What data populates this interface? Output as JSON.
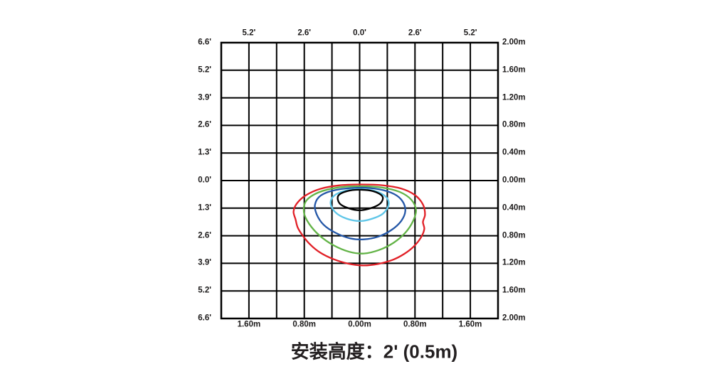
{
  "caption": {
    "text": "安装高度：2' (0.5m)"
  },
  "chart_data": {
    "type": "contour",
    "subtype": "isolux-light-distribution",
    "title": "安装高度：2' (0.5m)",
    "grid": {
      "cols": 10,
      "rows": 10,
      "line_color": "#000000",
      "grid_on": true
    },
    "scale": {
      "meters_per_cell": 0.4,
      "feet_per_cell": 1.3,
      "x_range_m": [
        -2.0,
        2.0
      ],
      "y_range_m": [
        -2.0,
        2.0
      ]
    },
    "axes": {
      "top": {
        "unit": "feet",
        "labels": [
          "5.2'",
          "2.6'",
          "0.0'",
          "2.6'",
          "5.2'"
        ],
        "line_indices": [
          1,
          3,
          5,
          7,
          9
        ]
      },
      "bottom": {
        "unit": "meters",
        "labels": [
          "1.60m",
          "0.80m",
          "0.00m",
          "0.80m",
          "1.60m"
        ],
        "line_indices": [
          1,
          3,
          5,
          7,
          9
        ]
      },
      "left": {
        "unit": "feet",
        "labels": [
          "6.6'",
          "5.2'",
          "3.9'",
          "2.6'",
          "1.3'",
          "0.0'",
          "1.3'",
          "2.6'",
          "3.9'",
          "5.2'",
          "6.6'"
        ],
        "line_indices": [
          0,
          1,
          2,
          3,
          4,
          5,
          6,
          7,
          8,
          9,
          10
        ]
      },
      "right": {
        "unit": "meters",
        "labels": [
          "2.00m",
          "1.60m",
          "1.20m",
          "0.80m",
          "0.40m",
          "0.00m",
          "0.40m",
          "0.80m",
          "1.20m",
          "1.60m",
          "2.00m"
        ],
        "line_indices": [
          0,
          1,
          2,
          3,
          4,
          5,
          6,
          7,
          8,
          9,
          10
        ]
      }
    },
    "contours": [
      {
        "name": "isolux-level-1-outer",
        "color": "#e11f26",
        "points_m": [
          [
            0.0,
            0.057
          ],
          [
            -0.3,
            0.07
          ],
          [
            -0.57,
            0.12
          ],
          [
            -0.78,
            0.215
          ],
          [
            -0.91,
            0.335
          ],
          [
            -0.955,
            0.45
          ],
          [
            -0.925,
            0.565
          ],
          [
            -0.895,
            0.68
          ],
          [
            -0.82,
            0.8
          ],
          [
            -0.71,
            0.93
          ],
          [
            -0.565,
            1.045
          ],
          [
            -0.38,
            1.135
          ],
          [
            -0.17,
            1.2
          ],
          [
            0.05,
            1.228
          ],
          [
            0.27,
            1.205
          ],
          [
            0.48,
            1.145
          ],
          [
            0.645,
            1.06
          ],
          [
            0.78,
            0.955
          ],
          [
            0.885,
            0.825
          ],
          [
            0.935,
            0.7
          ],
          [
            0.915,
            0.6
          ],
          [
            0.945,
            0.49
          ],
          [
            0.915,
            0.345
          ],
          [
            0.8,
            0.21
          ],
          [
            0.6,
            0.115
          ],
          [
            0.33,
            0.068
          ]
        ]
      },
      {
        "name": "isolux-level-2",
        "color": "#62b346",
        "points_m": [
          [
            0.0,
            0.082
          ],
          [
            -0.31,
            0.1
          ],
          [
            -0.59,
            0.17
          ],
          [
            -0.77,
            0.29
          ],
          [
            -0.805,
            0.46
          ],
          [
            -0.73,
            0.625
          ],
          [
            -0.58,
            0.795
          ],
          [
            -0.38,
            0.935
          ],
          [
            -0.15,
            1.03
          ],
          [
            0.06,
            1.055
          ],
          [
            0.28,
            1.005
          ],
          [
            0.49,
            0.9
          ],
          [
            0.66,
            0.755
          ],
          [
            0.77,
            0.59
          ],
          [
            0.815,
            0.43
          ],
          [
            0.75,
            0.28
          ],
          [
            0.58,
            0.165
          ],
          [
            0.32,
            0.1
          ]
        ]
      },
      {
        "name": "isolux-level-3",
        "color": "#2457a7",
        "points_m": [
          [
            0.0,
            0.103
          ],
          [
            -0.34,
            0.135
          ],
          [
            -0.56,
            0.215
          ],
          [
            -0.645,
            0.345
          ],
          [
            -0.62,
            0.49
          ],
          [
            -0.52,
            0.64
          ],
          [
            -0.35,
            0.755
          ],
          [
            -0.14,
            0.835
          ],
          [
            0.06,
            0.85
          ],
          [
            0.27,
            0.81
          ],
          [
            0.46,
            0.715
          ],
          [
            0.6,
            0.585
          ],
          [
            0.66,
            0.44
          ],
          [
            0.62,
            0.3
          ],
          [
            0.5,
            0.195
          ],
          [
            0.28,
            0.125
          ]
        ]
      },
      {
        "name": "isolux-level-4",
        "color": "#5fc6e8",
        "points_m": [
          [
            0.0,
            0.124
          ],
          [
            -0.22,
            0.15
          ],
          [
            -0.37,
            0.22
          ],
          [
            -0.42,
            0.33
          ],
          [
            -0.35,
            0.46
          ],
          [
            -0.19,
            0.55
          ],
          [
            0.0,
            0.585
          ],
          [
            0.17,
            0.555
          ],
          [
            0.335,
            0.48
          ],
          [
            0.42,
            0.35
          ],
          [
            0.38,
            0.235
          ],
          [
            0.22,
            0.15
          ]
        ]
      },
      {
        "name": "isolux-level-5-inner",
        "color": "#000000",
        "points_m": [
          [
            0.0,
            0.133
          ],
          [
            -0.19,
            0.155
          ],
          [
            -0.31,
            0.22
          ],
          [
            -0.29,
            0.33
          ],
          [
            -0.16,
            0.4
          ],
          [
            0.0,
            0.43
          ],
          [
            0.16,
            0.4
          ],
          [
            0.3,
            0.33
          ],
          [
            0.33,
            0.23
          ],
          [
            0.2,
            0.155
          ]
        ]
      }
    ]
  }
}
